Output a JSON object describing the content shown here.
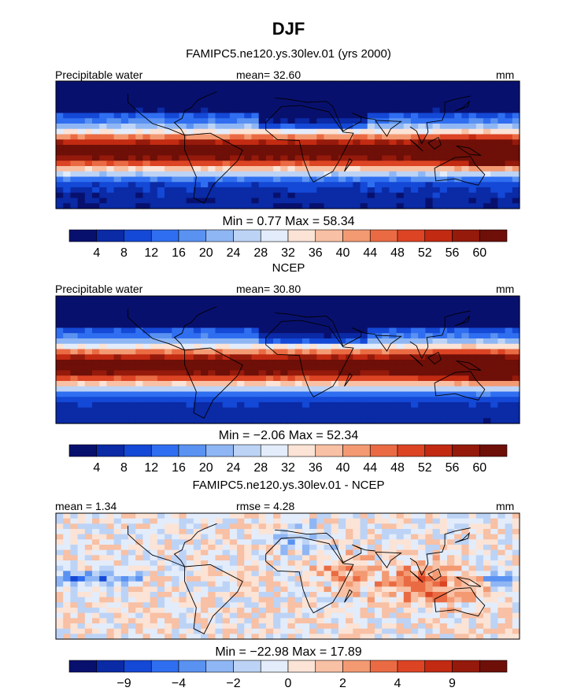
{
  "title": "DJF",
  "palette": [
    "#08106e",
    "#0a2aa6",
    "#1448d6",
    "#2f6ef0",
    "#5a92f2",
    "#8fb6f4",
    "#bcd3f6",
    "#e3ecfa",
    "#fbe3d6",
    "#f8c0a4",
    "#f39a73",
    "#ea6b43",
    "#dc4424",
    "#c22a12",
    "#951a0b",
    "#6e0f08"
  ],
  "colors": {
    "land": "#000000",
    "frame": "#000000"
  },
  "panels": [
    {
      "title": "FAMIPC5.ne120.ys.30lev.01 (yrs 2000)",
      "left_label": "Precipitable water",
      "center_label": "mean=  32.60",
      "right_label": "mm",
      "minmax": "Min =   0.77 Max =  58.34",
      "colorbar_ticks": [
        "4",
        "8",
        "12",
        "16",
        "20",
        "24",
        "28",
        "32",
        "36",
        "40",
        "44",
        "48",
        "52",
        "56",
        "60"
      ],
      "pattern": "precip"
    },
    {
      "title": "NCEP",
      "left_label": "Precipitable water",
      "center_label": "mean=  30.80",
      "right_label": "mm",
      "minmax": "Min =  −2.06 Max =  52.34",
      "colorbar_ticks": [
        "4",
        "8",
        "12",
        "16",
        "20",
        "24",
        "28",
        "32",
        "36",
        "40",
        "44",
        "48",
        "52",
        "56",
        "60"
      ],
      "pattern": "precip-smooth"
    },
    {
      "title": "FAMIPC5.ne120.ys.30lev.01 - NCEP",
      "left_label": "mean =   1.34",
      "center_label": "rmse =   4.28",
      "right_label": "mm",
      "minmax": "Min = −22.98 Max =  17.89",
      "colorbar_ticks": [
        "−9",
        "−4",
        "−2",
        "0",
        "2",
        "4",
        "9"
      ],
      "pattern": "diff"
    }
  ],
  "chart_data": [
    {
      "type": "heatmap",
      "title": "FAMIPC5.ne120.ys.30lev.01 (yrs 2000)",
      "variable": "Precipitable water",
      "units": "mm",
      "mean": 32.6,
      "min": 0.77,
      "max": 58.34,
      "contour_levels": [
        4,
        8,
        12,
        16,
        20,
        24,
        28,
        32,
        36,
        40,
        44,
        48,
        52,
        56,
        60
      ]
    },
    {
      "type": "heatmap",
      "title": "NCEP",
      "variable": "Precipitable water",
      "units": "mm",
      "mean": 30.8,
      "min": -2.06,
      "max": 52.34,
      "contour_levels": [
        4,
        8,
        12,
        16,
        20,
        24,
        28,
        32,
        36,
        40,
        44,
        48,
        52,
        56,
        60
      ]
    },
    {
      "type": "heatmap",
      "title": "FAMIPC5.ne120.ys.30lev.01 - NCEP",
      "units": "mm",
      "mean": 1.34,
      "rmse": 4.28,
      "min": -22.98,
      "max": 17.89,
      "colorbar_tick_labels": [
        "-9",
        "-4",
        "-2",
        "0",
        "2",
        "4",
        "9"
      ]
    }
  ]
}
